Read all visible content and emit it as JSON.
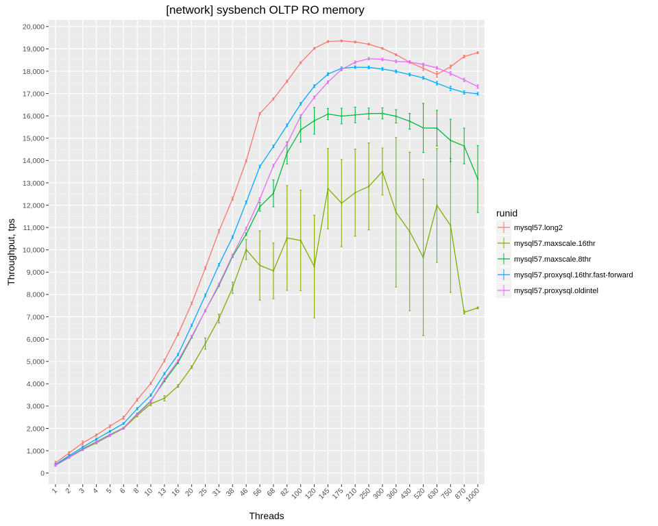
{
  "chart_data": {
    "type": "line",
    "title": "[network] sysbench OLTP RO memory",
    "xlabel": "Threads",
    "ylabel": "Throughput, tps",
    "categories": [
      "1",
      "2",
      "3",
      "4",
      "5",
      "6",
      "8",
      "10",
      "13",
      "16",
      "20",
      "25",
      "31",
      "38",
      "46",
      "56",
      "68",
      "82",
      "100",
      "120",
      "145",
      "175",
      "210",
      "250",
      "300",
      "360",
      "430",
      "520",
      "630",
      "750",
      "870",
      "1000"
    ],
    "ylim": [
      -500,
      20300
    ],
    "yticks": [
      0,
      1000,
      2000,
      3000,
      4000,
      5000,
      6000,
      7000,
      8000,
      9000,
      10000,
      11000,
      12000,
      13000,
      14000,
      15000,
      16000,
      17000,
      18000,
      19000,
      20000
    ],
    "ytick_labels": [
      "0",
      "1,000",
      "2,000",
      "3,000",
      "4,000",
      "5,000",
      "6,000",
      "7,000",
      "8,000",
      "9,000",
      "10,000",
      "11,000",
      "12,000",
      "13,000",
      "14,000",
      "15,000",
      "16,000",
      "17,000",
      "18,000",
      "19,000",
      "20,000"
    ],
    "grid": true,
    "background": "#ebebeb",
    "legend_title": "runid",
    "legend_position": "right",
    "series": [
      {
        "name": "mysql57.long2",
        "color": "#F8766D",
        "values": [
          450,
          900,
          1350,
          1700,
          2100,
          2480,
          3280,
          4020,
          5040,
          6220,
          7600,
          9180,
          10830,
          12290,
          13980,
          16100,
          16760,
          17550,
          18380,
          19020,
          19330,
          19360,
          19310,
          19210,
          19020,
          18740,
          18400,
          18130,
          17860,
          18200,
          18660,
          18830
        ],
        "err": [
          80,
          60,
          90,
          50,
          60,
          70,
          60,
          50,
          60,
          60,
          60,
          60,
          80,
          70,
          60,
          50,
          50,
          50,
          40,
          40,
          40,
          40,
          40,
          40,
          40,
          40,
          40,
          100,
          120,
          80,
          60,
          40
        ]
      },
      {
        "name": "mysql57.maxscale.16thr",
        "color": "#7CAE00",
        "values": [
          350,
          700,
          1050,
          1350,
          1680,
          2000,
          2580,
          3100,
          3350,
          3900,
          4750,
          5800,
          6920,
          8300,
          10010,
          9300,
          9060,
          10530,
          10420,
          9250,
          12740,
          12090,
          12560,
          12840,
          13510,
          11680,
          10820,
          9660,
          11990,
          11090,
          7200,
          7400
        ],
        "err": [
          40,
          40,
          40,
          40,
          40,
          40,
          60,
          80,
          120,
          60,
          60,
          250,
          200,
          250,
          450,
          1550,
          1250,
          2350,
          2250,
          2300,
          1800,
          1950,
          1950,
          1950,
          1050,
          3350,
          3550,
          3500,
          2550,
          3000,
          80,
          40
        ]
      },
      {
        "name": "mysql57.maxscale.8thr",
        "color": "#00BA38",
        "values": [
          360,
          720,
          1080,
          1400,
          1720,
          2030,
          2650,
          3230,
          4130,
          4950,
          6080,
          7280,
          8400,
          9700,
          10700,
          11930,
          12530,
          14340,
          15370,
          15780,
          16080,
          15990,
          16040,
          16100,
          16110,
          15980,
          15760,
          15460,
          15450,
          14900,
          14650,
          13170
        ],
        "err": [
          30,
          30,
          30,
          30,
          30,
          30,
          40,
          40,
          40,
          40,
          40,
          40,
          40,
          40,
          60,
          200,
          600,
          500,
          550,
          600,
          250,
          350,
          350,
          250,
          250,
          300,
          350,
          1100,
          800,
          950,
          800,
          1500
        ]
      },
      {
        "name": "mysql57.proxysql.16thr.fast-forward",
        "color": "#00A9FF",
        "values": [
          380,
          780,
          1160,
          1520,
          1870,
          2220,
          2880,
          3490,
          4450,
          5310,
          6620,
          7960,
          9330,
          10570,
          12130,
          13730,
          14630,
          15580,
          16540,
          17330,
          17870,
          18130,
          18180,
          18170,
          18100,
          17990,
          17850,
          17700,
          17460,
          17230,
          17050,
          16990
        ],
        "err": [
          40,
          40,
          40,
          40,
          40,
          40,
          50,
          50,
          50,
          50,
          50,
          60,
          60,
          60,
          60,
          60,
          60,
          60,
          60,
          60,
          60,
          60,
          60,
          60,
          60,
          60,
          60,
          60,
          80,
          100,
          80,
          60
        ]
      },
      {
        "name": "mysql57.proxysql.oldintel",
        "color": "#E76BF3",
        "values": [
          340,
          700,
          1050,
          1380,
          1700,
          2020,
          2620,
          3200,
          4200,
          5030,
          6120,
          7270,
          8460,
          9750,
          10950,
          12280,
          13770,
          14750,
          15990,
          16830,
          17510,
          18080,
          18400,
          18560,
          18530,
          18440,
          18410,
          18300,
          18150,
          17900,
          17610,
          17310
        ],
        "err": [
          40,
          40,
          40,
          40,
          40,
          40,
          50,
          50,
          50,
          50,
          50,
          50,
          50,
          60,
          60,
          60,
          60,
          60,
          60,
          60,
          60,
          60,
          60,
          60,
          60,
          60,
          60,
          60,
          60,
          80,
          80,
          80
        ]
      }
    ]
  }
}
